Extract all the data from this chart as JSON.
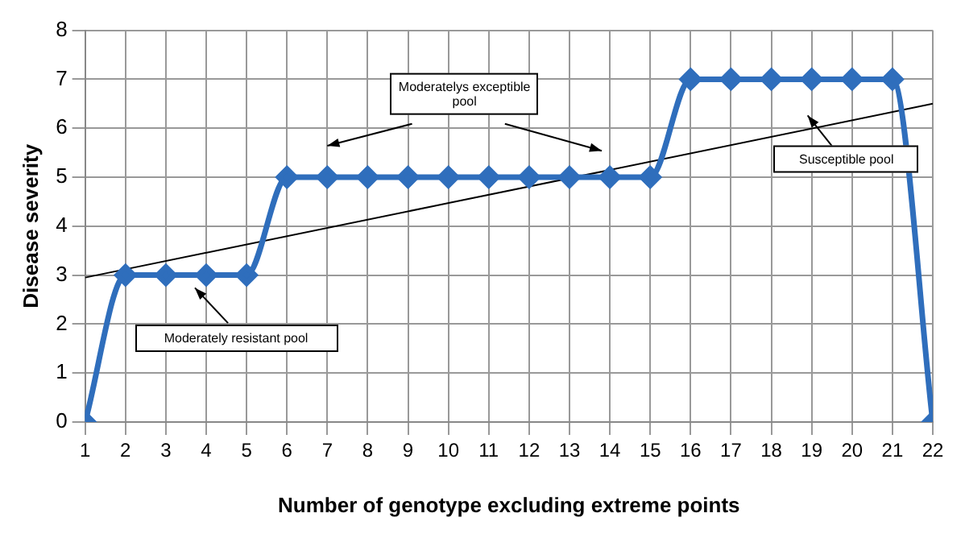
{
  "chart_data": {
    "type": "line",
    "xlabel": "Number of genotype excluding extreme points",
    "ylabel": "Disease severity",
    "x": [
      1,
      2,
      3,
      4,
      5,
      6,
      7,
      8,
      9,
      10,
      11,
      12,
      13,
      14,
      15,
      16,
      17,
      18,
      19,
      20,
      21,
      22
    ],
    "series": [
      {
        "color": "#2f6ebc",
        "values": [
          0,
          3,
          3,
          3,
          3,
          5,
          5,
          5,
          5,
          5,
          5,
          5,
          5,
          5,
          5,
          7,
          7,
          7,
          7,
          7,
          7,
          0
        ],
        "marker": "diamond"
      },
      {
        "type": "line",
        "color": "#000000",
        "x": [
          1,
          22
        ],
        "values": [
          2.95,
          6.5
        ],
        "marker": "none"
      }
    ],
    "xlim": [
      1,
      22
    ],
    "xticks": [
      1,
      2,
      3,
      4,
      5,
      6,
      7,
      8,
      9,
      10,
      11,
      12,
      13,
      14,
      15,
      16,
      17,
      18,
      19,
      20,
      21,
      22
    ],
    "ylim": [
      0,
      8
    ],
    "yticks": [
      0,
      1,
      2,
      3,
      4,
      5,
      6,
      7,
      8
    ],
    "grid": true,
    "legend": false,
    "annotations": [
      "Moderatelys exceptible pool",
      "Moderately resistant pool",
      "Susceptible pool"
    ]
  }
}
